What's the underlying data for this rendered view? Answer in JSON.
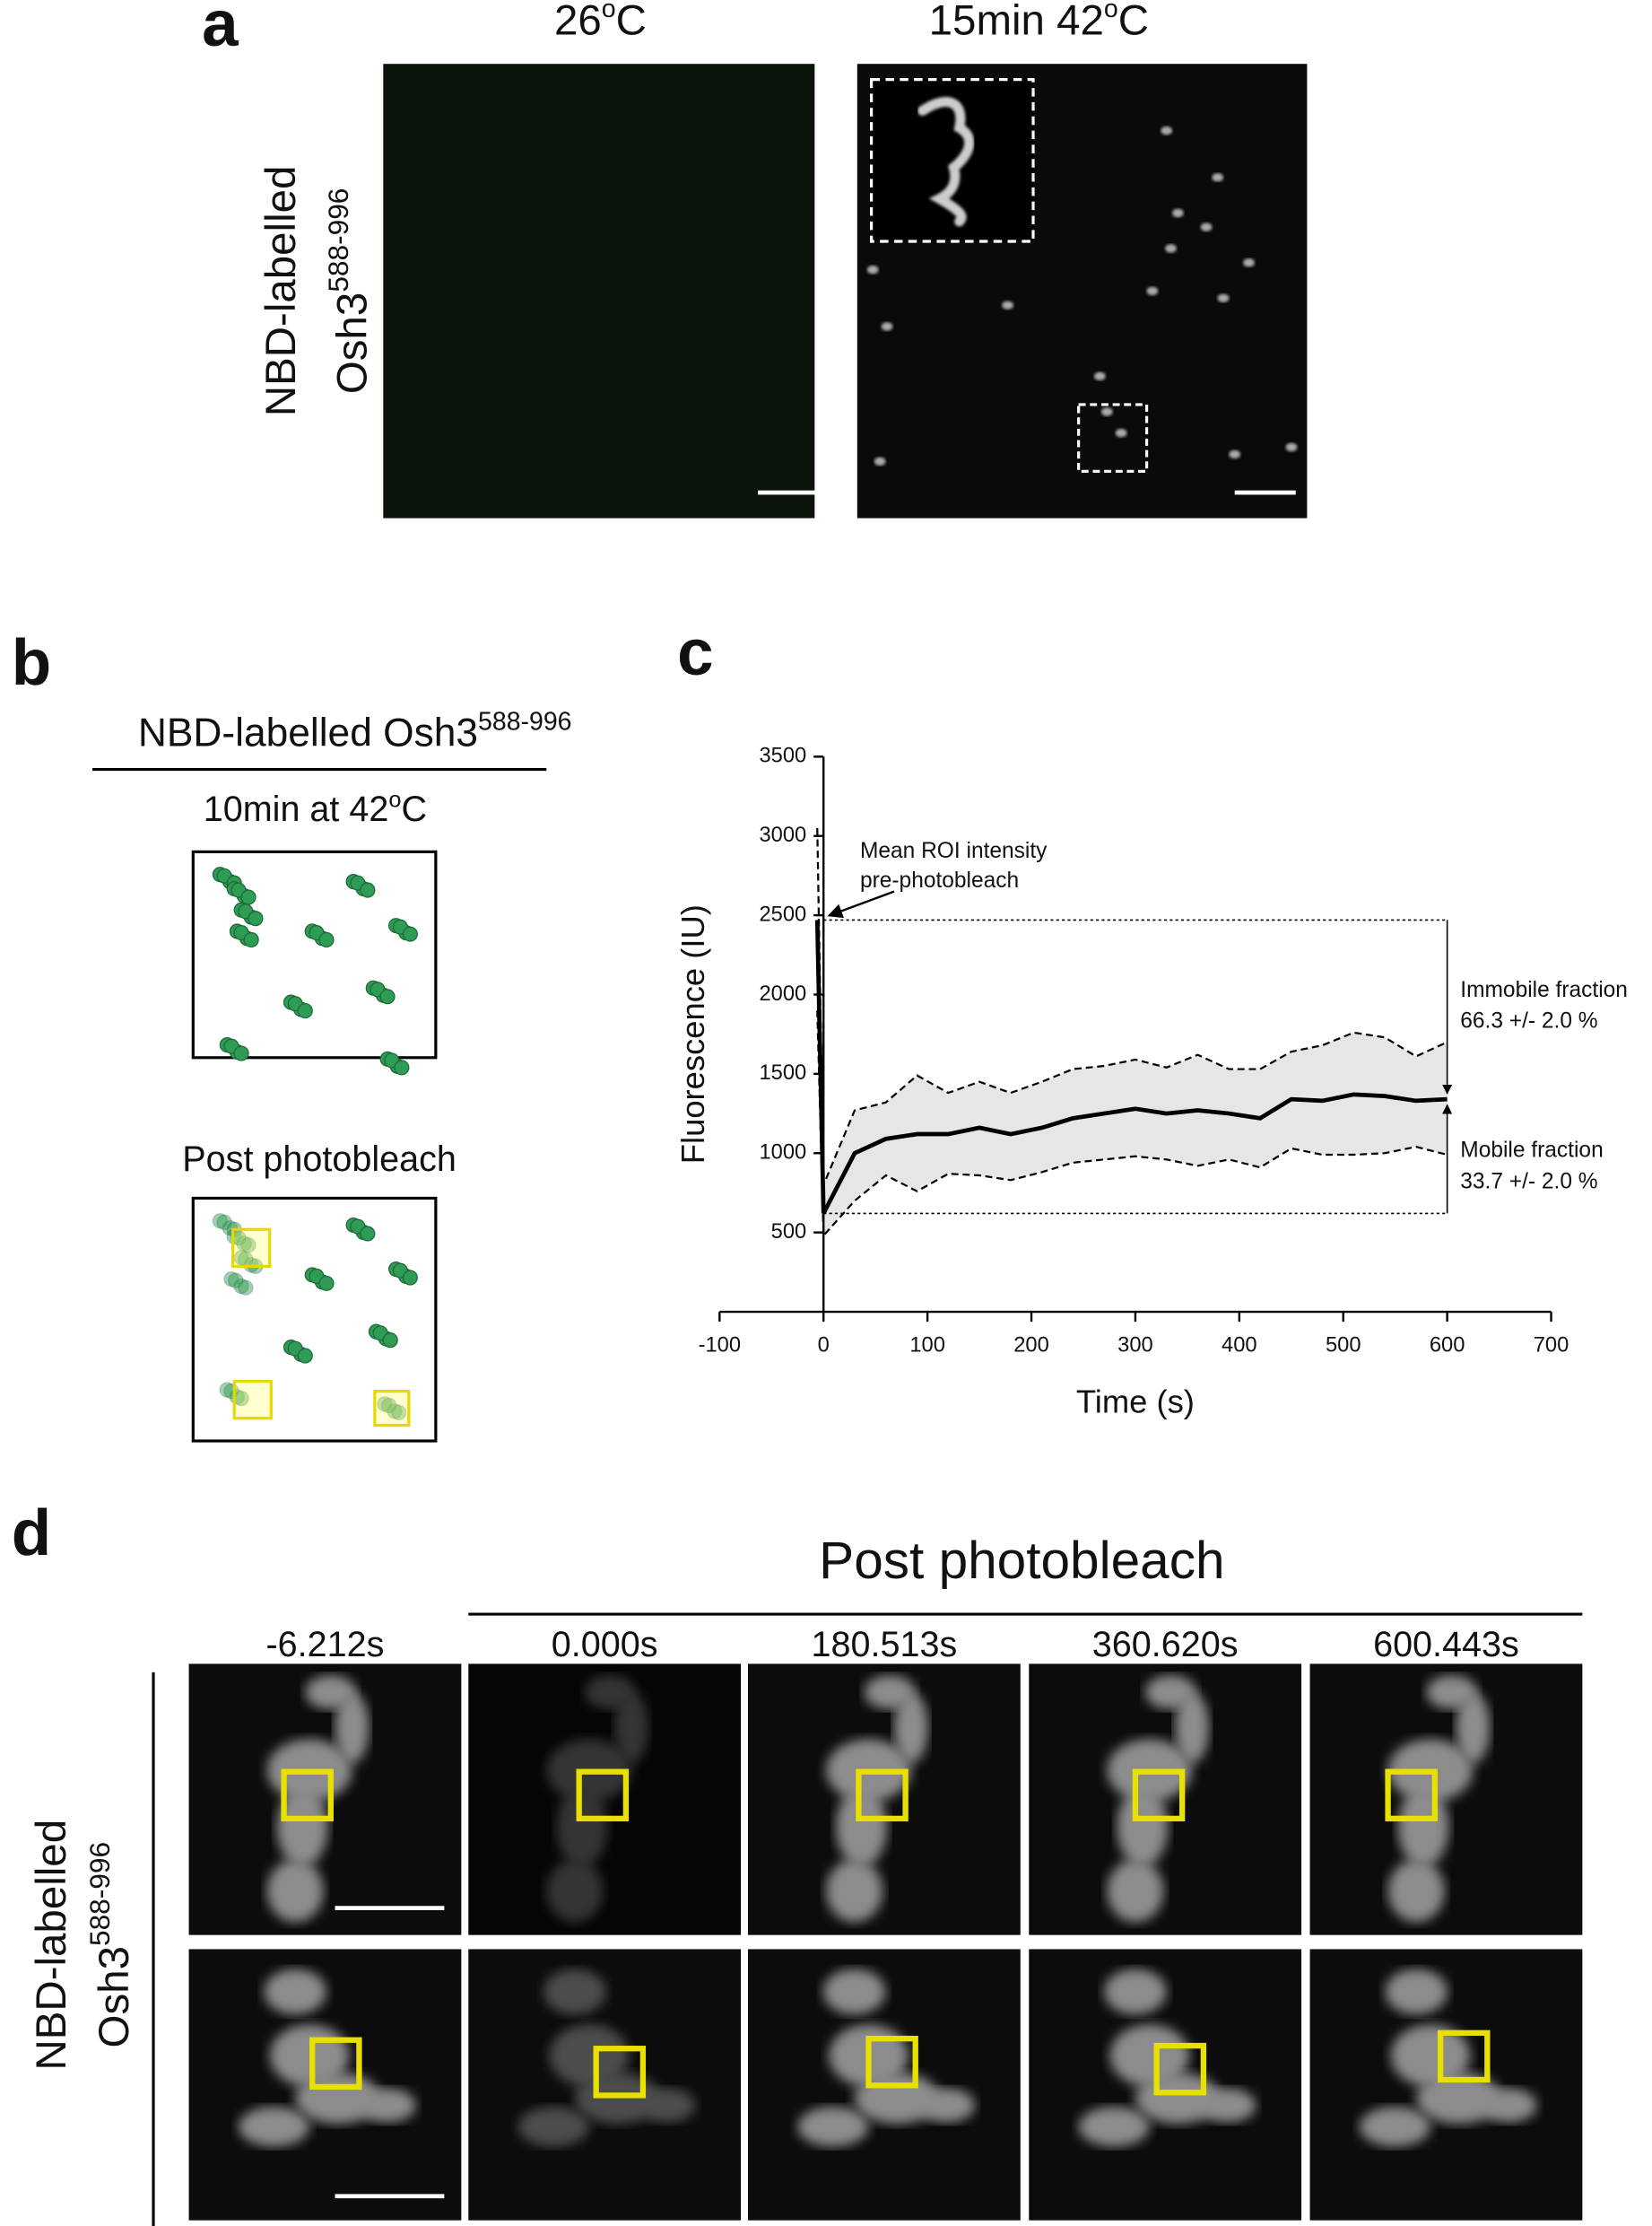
{
  "panel_a": {
    "letter": "a",
    "row_label": [
      "NBD-labelled",
      "Osh3",
      "588-996"
    ],
    "columns": [
      [
        "26",
        "o",
        "C"
      ],
      [
        "15min 42",
        "o",
        "C"
      ]
    ]
  },
  "panel_b": {
    "letter": "b",
    "title": [
      "NBD-labelled Osh3",
      "588-996"
    ],
    "conditions": [
      [
        "10min at 42",
        "o",
        "C"
      ],
      "Post photobleach"
    ]
  },
  "chart_data": {
    "type": "line",
    "panel_letter": "c",
    "xlabel": "Time (s)",
    "ylabel": "Fluorescence (IU)",
    "x": [
      -6,
      0,
      30,
      60,
      90,
      120,
      150,
      180,
      210,
      240,
      270,
      300,
      330,
      360,
      390,
      420,
      450,
      480,
      510,
      540,
      570,
      600
    ],
    "series": [
      {
        "color": "#000000",
        "style": "solid",
        "values": [
          2470,
          620,
          1000,
          1090,
          1120,
          1120,
          1160,
          1120,
          1160,
          1220,
          1250,
          1280,
          1250,
          1270,
          1250,
          1220,
          1340,
          1330,
          1370,
          1360,
          1330,
          1340
        ]
      },
      {
        "color": "#000000",
        "style": "dashed",
        "values": [
          3050,
          800,
          1270,
          1320,
          1490,
          1380,
          1450,
          1380,
          1450,
          1530,
          1550,
          1590,
          1540,
          1620,
          1530,
          1530,
          1640,
          1680,
          1760,
          1730,
          1610,
          1700
        ]
      },
      {
        "color": "#000000",
        "style": "dashed",
        "values": [
          1900,
          480,
          700,
          860,
          760,
          870,
          860,
          830,
          880,
          940,
          960,
          980,
          960,
          920,
          960,
          910,
          1030,
          990,
          990,
          1000,
          1040,
          990
        ]
      }
    ],
    "band_color": "#e6e6e6",
    "xlim": [
      -100,
      700
    ],
    "xticks": [
      -100,
      0,
      100,
      200,
      300,
      400,
      500,
      600,
      700
    ],
    "ylim": [
      0,
      3500
    ],
    "yticks": [
      500,
      1000,
      1500,
      2000,
      2500,
      3000,
      3500
    ],
    "annotations": [
      "Mean ROI intensity",
      "pre-photobleach",
      "Immobile fraction",
      "66.3 +/- 2.0 %",
      "Mobile fraction",
      "33.7 +/- 2.0 %"
    ]
  },
  "panel_d": {
    "letter": "d",
    "header": "Post photobleach",
    "times": [
      "-6.212s",
      "0.000s",
      "180.513s",
      "360.620s",
      "600.443s"
    ],
    "row_label": [
      "NBD-labelled",
      "Osh3",
      "588-996"
    ]
  }
}
